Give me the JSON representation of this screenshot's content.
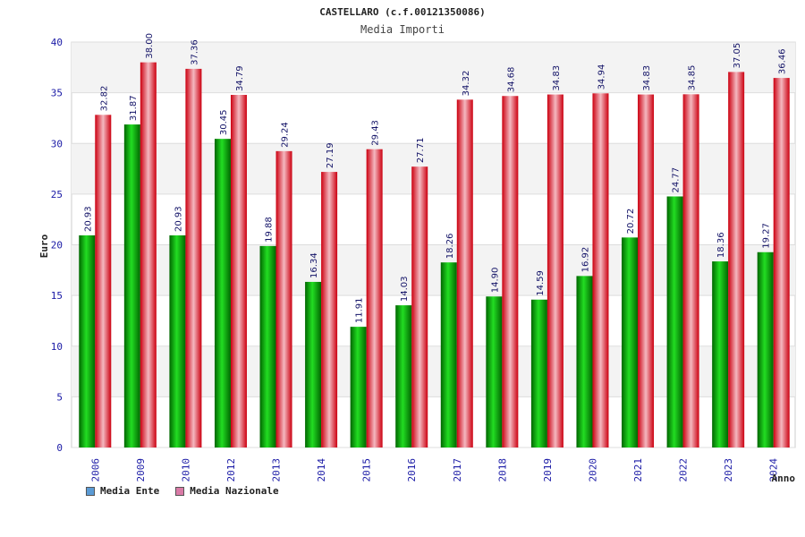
{
  "chart_data": {
    "type": "bar",
    "title": "CASTELLARO (c.f.00121350086)",
    "subtitle": "Media Importi",
    "xlabel": "Anno",
    "ylabel": "Euro",
    "ylim": [
      0,
      40
    ],
    "yticks": [
      0,
      5,
      10,
      15,
      20,
      25,
      30,
      35,
      40
    ],
    "ytick_labels": [
      "0",
      "5",
      "10",
      "15",
      "20",
      "25",
      "30",
      "35",
      "40"
    ],
    "grid": true,
    "legend_position": "bottom-left",
    "categories": [
      "2006",
      "2009",
      "2010",
      "2012",
      "2013",
      "2014",
      "2015",
      "2016",
      "2017",
      "2018",
      "2019",
      "2020",
      "2021",
      "2022",
      "2023",
      "2024"
    ],
    "series": [
      {
        "name": "Media Ente",
        "color": "#00aa00",
        "legend_color": "#5b9bd5",
        "values": [
          20.93,
          31.87,
          20.93,
          30.45,
          19.88,
          16.34,
          11.91,
          14.03,
          18.26,
          14.9,
          14.59,
          16.92,
          20.72,
          24.77,
          18.36,
          19.27
        ],
        "labels": [
          "20.93",
          "31.87",
          "20.93",
          "30.45",
          "19.88",
          "16.34",
          "11.91",
          "14.03",
          "18.26",
          "14.90",
          "14.59",
          "16.92",
          "20.72",
          "24.77",
          "18.36",
          "19.27"
        ]
      },
      {
        "name": "Media Nazionale",
        "color": "#e8001c",
        "legend_color": "#d97aa6",
        "values": [
          32.82,
          38.0,
          37.36,
          34.79,
          29.24,
          27.19,
          29.43,
          27.71,
          34.32,
          34.68,
          34.83,
          34.94,
          34.83,
          34.85,
          37.05,
          36.46
        ],
        "labels": [
          "32.82",
          "38.00",
          "37.36",
          "34.79",
          "29.24",
          "27.19",
          "29.43",
          "27.71",
          "34.32",
          "34.68",
          "34.83",
          "34.94",
          "34.83",
          "34.85",
          "37.05",
          "36.46"
        ]
      }
    ]
  }
}
